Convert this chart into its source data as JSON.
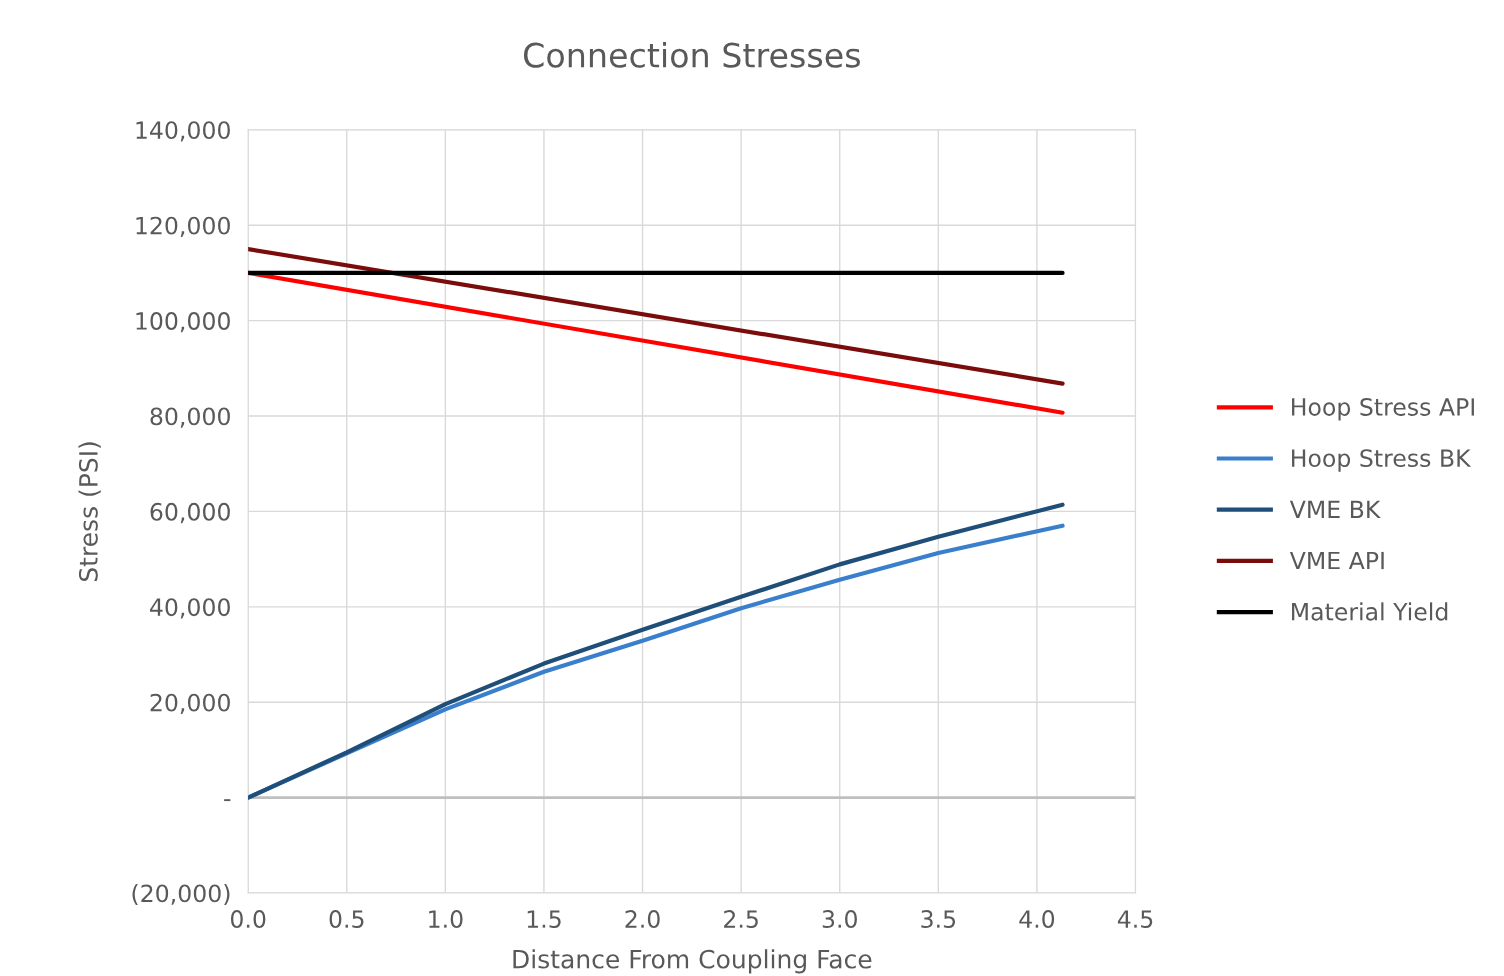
{
  "chart_data": {
    "type": "line",
    "title": "Connection Stresses",
    "xlabel": "Distance From Coupling Face",
    "ylabel": "Stress (PSI)",
    "xlim": [
      0,
      4.5
    ],
    "xticks": [
      {
        "value": 0,
        "label": "0.0"
      },
      {
        "value": 0.5,
        "label": "0.5"
      },
      {
        "value": 1,
        "label": "1.0"
      },
      {
        "value": 1.5,
        "label": "1.5"
      },
      {
        "value": 2,
        "label": "2.0"
      },
      {
        "value": 2.5,
        "label": "2.5"
      },
      {
        "value": 3,
        "label": "3.0"
      },
      {
        "value": 3.5,
        "label": "3.5"
      },
      {
        "value": 4,
        "label": "4.0"
      },
      {
        "value": 4.5,
        "label": "4.5"
      }
    ],
    "ylim": [
      -20000,
      140000
    ],
    "yticks": [
      {
        "value": -20000,
        "label": "(20,000)"
      },
      {
        "value": 0,
        "label": "-"
      },
      {
        "value": 20000,
        "label": "20,000"
      },
      {
        "value": 40000,
        "label": "40,000"
      },
      {
        "value": 60000,
        "label": "60,000"
      },
      {
        "value": 80000,
        "label": "80,000"
      },
      {
        "value": 100000,
        "label": "100,000"
      },
      {
        "value": 120000,
        "label": "120,000"
      },
      {
        "value": 140000,
        "label": "140,000"
      }
    ],
    "grid": true,
    "legend": "right",
    "marker": "none",
    "line_style": "solid",
    "ref_lines": [
      {
        "axis": "y",
        "value": 0,
        "label": null,
        "color": "#bfbfbf"
      }
    ],
    "series": [
      {
        "name": "Hoop Stress API",
        "color": "#ff0000",
        "x": [
          0,
          4.13
        ],
        "values": [
          110000,
          80700
        ]
      },
      {
        "name": "Hoop Stress BK",
        "color": "#3a7fcc",
        "x": [
          0,
          0.5,
          1.0,
          1.5,
          2.0,
          2.5,
          3.0,
          3.5,
          4.13
        ],
        "values": [
          0,
          9300,
          18500,
          26400,
          32900,
          39700,
          45700,
          51300,
          57000
        ]
      },
      {
        "name": "VME BK",
        "color": "#1f4e79",
        "x": [
          0,
          0.5,
          1.0,
          1.5,
          2.0,
          2.5,
          3.0,
          3.5,
          4.13
        ],
        "values": [
          0,
          9500,
          19600,
          28100,
          35200,
          42100,
          48900,
          54700,
          61400
        ]
      },
      {
        "name": "VME API",
        "color": "#7b0c0c",
        "x": [
          0,
          4.13
        ],
        "values": [
          115000,
          86800
        ]
      },
      {
        "name": "Material Yield",
        "color": "#000000",
        "x": [
          0,
          4.13
        ],
        "values": [
          110000,
          110000
        ]
      }
    ]
  }
}
